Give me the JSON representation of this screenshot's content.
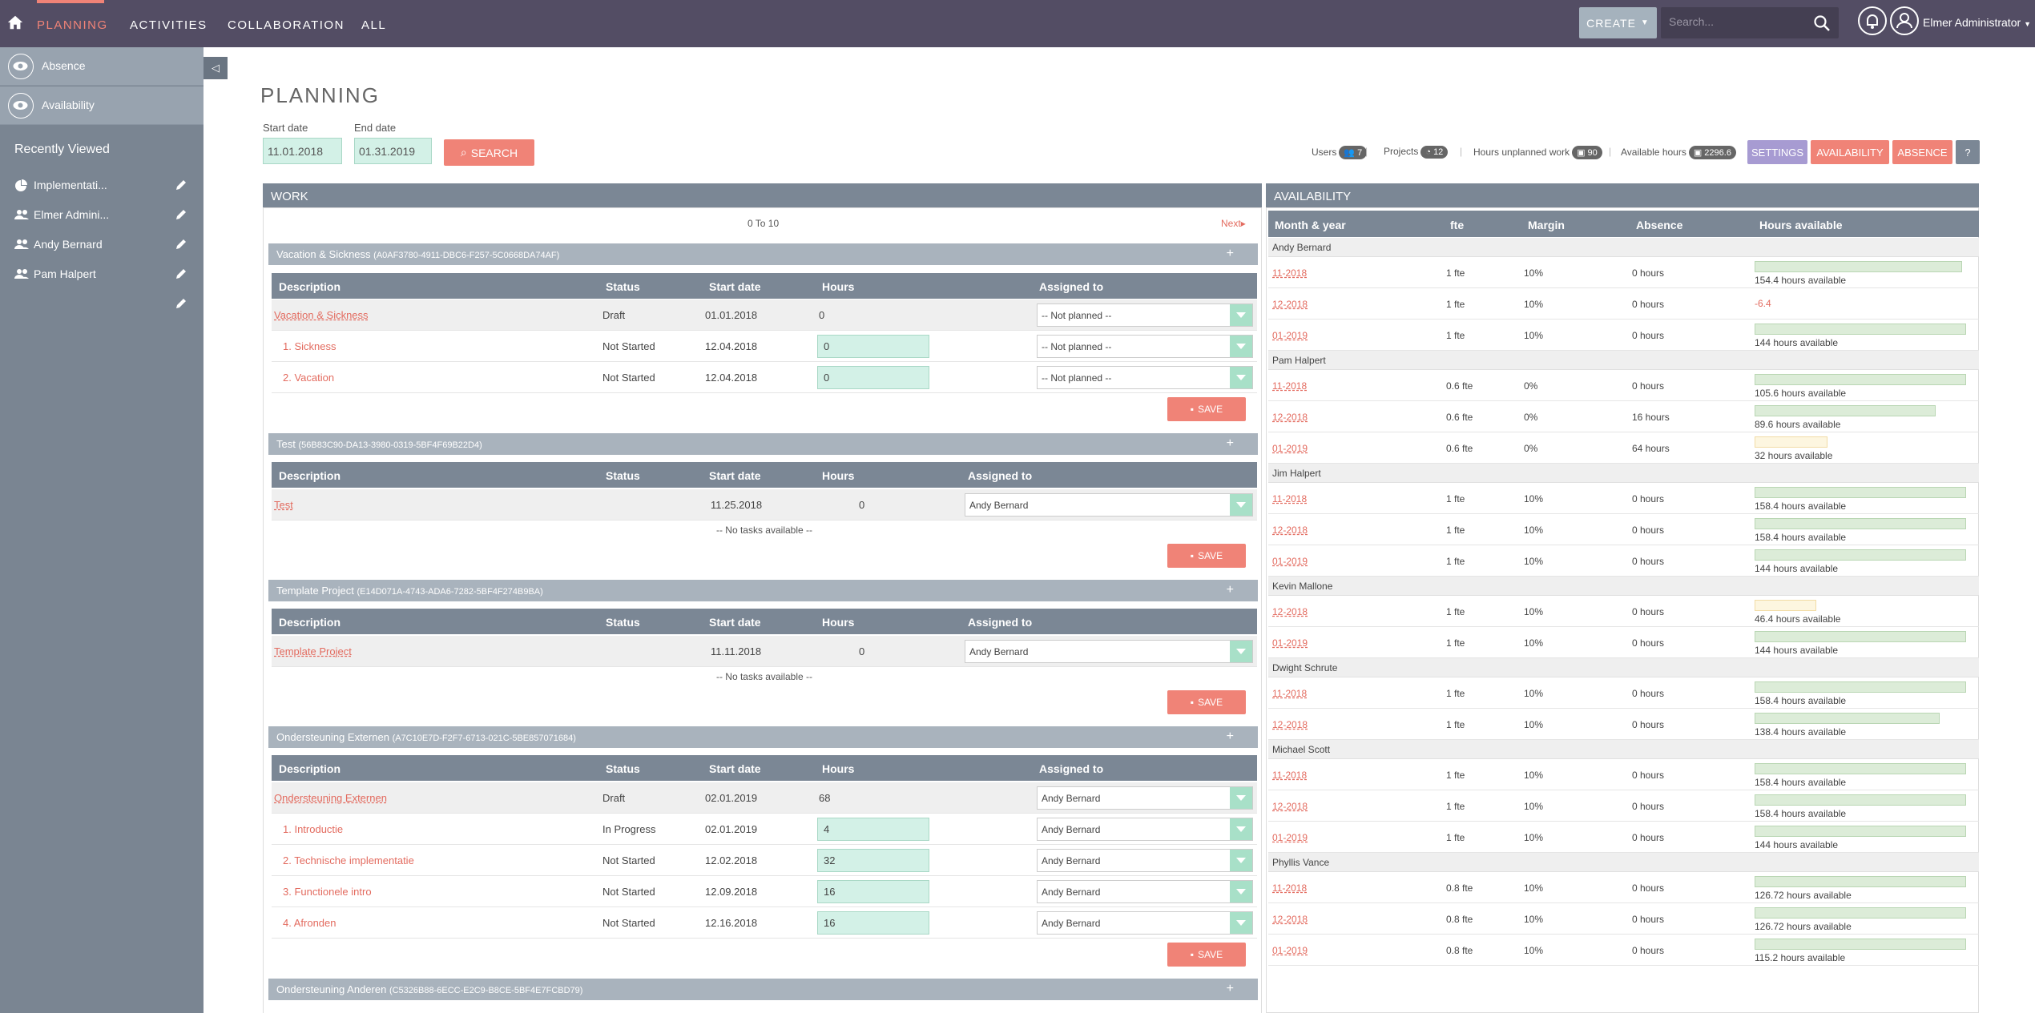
{
  "nav": {
    "tabs": [
      "PLANNING",
      "ACTIVITIES",
      "COLLABORATION",
      "ALL"
    ],
    "active": "PLANNING",
    "create_label": "CREATE",
    "search_placeholder": "Search...",
    "user_name": "Elmer Administrator"
  },
  "sidebar": {
    "links": [
      "Absence",
      "Availability"
    ],
    "recently_viewed_title": "Recently Viewed",
    "recent": [
      {
        "label": "Implementati...",
        "icon": "pie-chart-icon"
      },
      {
        "label": "Elmer Admini...",
        "icon": "users-icon"
      },
      {
        "label": "Andy Bernard",
        "icon": "users-icon"
      },
      {
        "label": "Pam Halpert",
        "icon": "users-icon"
      },
      {
        "label": "",
        "icon": ""
      }
    ]
  },
  "page": {
    "title": "PLANNING",
    "start_label": "Start date",
    "end_label": "End date",
    "start_value": "11.01.2018",
    "end_value": "01.31.2019",
    "search_label": "SEARCH"
  },
  "stats": {
    "users_label": "Users",
    "users": "7",
    "projects_label": "Projects",
    "projects": "12",
    "unplanned_label": "Hours unplanned work",
    "unplanned": "90",
    "available_label": "Available hours",
    "available": "2296.6",
    "settings": "SETTINGS",
    "availability": "AVAILABILITY",
    "absence": "ABSENCE",
    "help": "?"
  },
  "work": {
    "title": "WORK",
    "pager": "0 To 10",
    "next": "Next",
    "cols": [
      "Description",
      "Status",
      "Start date",
      "Hours",
      "Assigned to"
    ],
    "save": "SAVE",
    "no_tasks": "-- No tasks available --",
    "groups": [
      {
        "name": "Vacation & Sickness",
        "id": "(A0AF3780-4911-DBC6-F257-5C0668DA74AF)",
        "main": {
          "desc": "Vacation & Sickness",
          "status": "Draft",
          "start": "01.01.2018",
          "hours": "0",
          "assigned": "-- Not planned --"
        },
        "tasks": [
          {
            "desc": "1. Sickness",
            "status": "Not Started",
            "start": "12.04.2018",
            "hours": "0",
            "assigned": "-- Not planned --"
          },
          {
            "desc": "2. Vacation",
            "status": "Not Started",
            "start": "12.04.2018",
            "hours": "0",
            "assigned": "-- Not planned --"
          }
        ]
      },
      {
        "name": "Test",
        "id": "(56B83C90-DA13-3980-0319-5BF4F69B22D4)",
        "main": {
          "desc": "Test",
          "status": "",
          "start": "11.25.2018",
          "hours": "0",
          "assigned": "Andy Bernard"
        },
        "tasks": []
      },
      {
        "name": "Template Project",
        "id": "(E14D071A-4743-ADA6-7282-5BF4F274B9BA)",
        "main": {
          "desc": "Template Project",
          "status": "",
          "start": "11.11.2018",
          "hours": "0",
          "assigned": "Andy Bernard"
        },
        "tasks": []
      },
      {
        "name": "Ondersteuning Externen",
        "id": "(A7C10E7D-F2F7-6713-021C-5BE857071684)",
        "main": {
          "desc": "Ondersteuning Externen",
          "status": "Draft",
          "start": "02.01.2019",
          "hours": "68",
          "assigned": "Andy Bernard"
        },
        "tasks": [
          {
            "desc": "1. Introductie",
            "status": "In Progress",
            "start": "02.01.2019",
            "hours": "4",
            "assigned": "Andy Bernard"
          },
          {
            "desc": "2. Technische implementatie",
            "status": "Not Started",
            "start": "12.02.2018",
            "hours": "32",
            "assigned": "Andy Bernard"
          },
          {
            "desc": "3. Functionele intro",
            "status": "Not Started",
            "start": "12.09.2018",
            "hours": "16",
            "assigned": "Andy Bernard"
          },
          {
            "desc": "4. Afronden",
            "status": "Not Started",
            "start": "12.16.2018",
            "hours": "16",
            "assigned": "Andy Bernard"
          }
        ]
      },
      {
        "name": "Ondersteuning Anderen",
        "id": "(C5326B88-6ECC-E2C9-B8CE-5BF4E7FCBD79)"
      }
    ]
  },
  "availability": {
    "title": "AVAILABILITY",
    "cols": [
      "Month & year",
      "fte",
      "Margin",
      "Absence",
      "Hours available"
    ],
    "people": [
      {
        "name": "Andy Bernard",
        "rows": [
          {
            "month": "11-2018",
            "fte": "1 fte",
            "margin": "10%",
            "absence": "0 hours",
            "text": "154.4 hours available",
            "fill": 0.94
          },
          {
            "month": "12-2018",
            "fte": "1 fte",
            "margin": "10%",
            "absence": "0 hours",
            "text": "-6.4",
            "fill": 0,
            "negative": true
          },
          {
            "month": "01-2019",
            "fte": "1 fte",
            "margin": "10%",
            "absence": "0 hours",
            "text": "144 hours available",
            "fill": 0.96
          }
        ]
      },
      {
        "name": "Pam Halpert",
        "rows": [
          {
            "month": "11-2018",
            "fte": "0.6 fte",
            "margin": "0%",
            "absence": "0 hours",
            "text": "105.6 hours available",
            "fill": 0.96
          },
          {
            "month": "12-2018",
            "fte": "0.6 fte",
            "margin": "0%",
            "absence": "16 hours",
            "text": "89.6 hours available",
            "fill": 0.82
          },
          {
            "month": "01-2019",
            "fte": "0.6 fte",
            "margin": "0%",
            "absence": "64 hours",
            "text": "32 hours available",
            "fill": 0.33,
            "warn": true
          }
        ]
      },
      {
        "name": "Jim Halpert",
        "rows": [
          {
            "month": "11-2018",
            "fte": "1 fte",
            "margin": "10%",
            "absence": "0 hours",
            "text": "158.4 hours available",
            "fill": 0.96
          },
          {
            "month": "12-2018",
            "fte": "1 fte",
            "margin": "10%",
            "absence": "0 hours",
            "text": "158.4 hours available",
            "fill": 0.96
          },
          {
            "month": "01-2019",
            "fte": "1 fte",
            "margin": "10%",
            "absence": "0 hours",
            "text": "144 hours available",
            "fill": 0.96
          }
        ]
      },
      {
        "name": "Kevin Mallone",
        "rows": [
          {
            "month": "12-2018",
            "fte": "1 fte",
            "margin": "10%",
            "absence": "0 hours",
            "text": "46.4 hours available",
            "fill": 0.28,
            "warn": true
          },
          {
            "month": "01-2019",
            "fte": "1 fte",
            "margin": "10%",
            "absence": "0 hours",
            "text": "144 hours available",
            "fill": 0.96
          }
        ]
      },
      {
        "name": "Dwight Schrute",
        "rows": [
          {
            "month": "11-2018",
            "fte": "1 fte",
            "margin": "10%",
            "absence": "0 hours",
            "text": "158.4 hours available",
            "fill": 0.96
          },
          {
            "month": "12-2018",
            "fte": "1 fte",
            "margin": "10%",
            "absence": "0 hours",
            "text": "138.4 hours available",
            "fill": 0.84
          }
        ]
      },
      {
        "name": "Michael Scott",
        "rows": [
          {
            "month": "11-2018",
            "fte": "1 fte",
            "margin": "10%",
            "absence": "0 hours",
            "text": "158.4 hours available",
            "fill": 0.96
          },
          {
            "month": "12-2018",
            "fte": "1 fte",
            "margin": "10%",
            "absence": "0 hours",
            "text": "158.4 hours available",
            "fill": 0.96
          },
          {
            "month": "01-2019",
            "fte": "1 fte",
            "margin": "10%",
            "absence": "0 hours",
            "text": "144 hours available",
            "fill": 0.96
          }
        ]
      },
      {
        "name": "Phyllis Vance",
        "rows": [
          {
            "month": "11-2018",
            "fte": "0.8 fte",
            "margin": "10%",
            "absence": "0 hours",
            "text": "126.72 hours available",
            "fill": 0.96
          },
          {
            "month": "12-2018",
            "fte": "0.8 fte",
            "margin": "10%",
            "absence": "0 hours",
            "text": "126.72 hours available",
            "fill": 0.96
          },
          {
            "month": "01-2019",
            "fte": "0.8 fte",
            "margin": "10%",
            "absence": "0 hours",
            "text": "115.2 hours available",
            "fill": 0.96
          }
        ]
      }
    ]
  }
}
